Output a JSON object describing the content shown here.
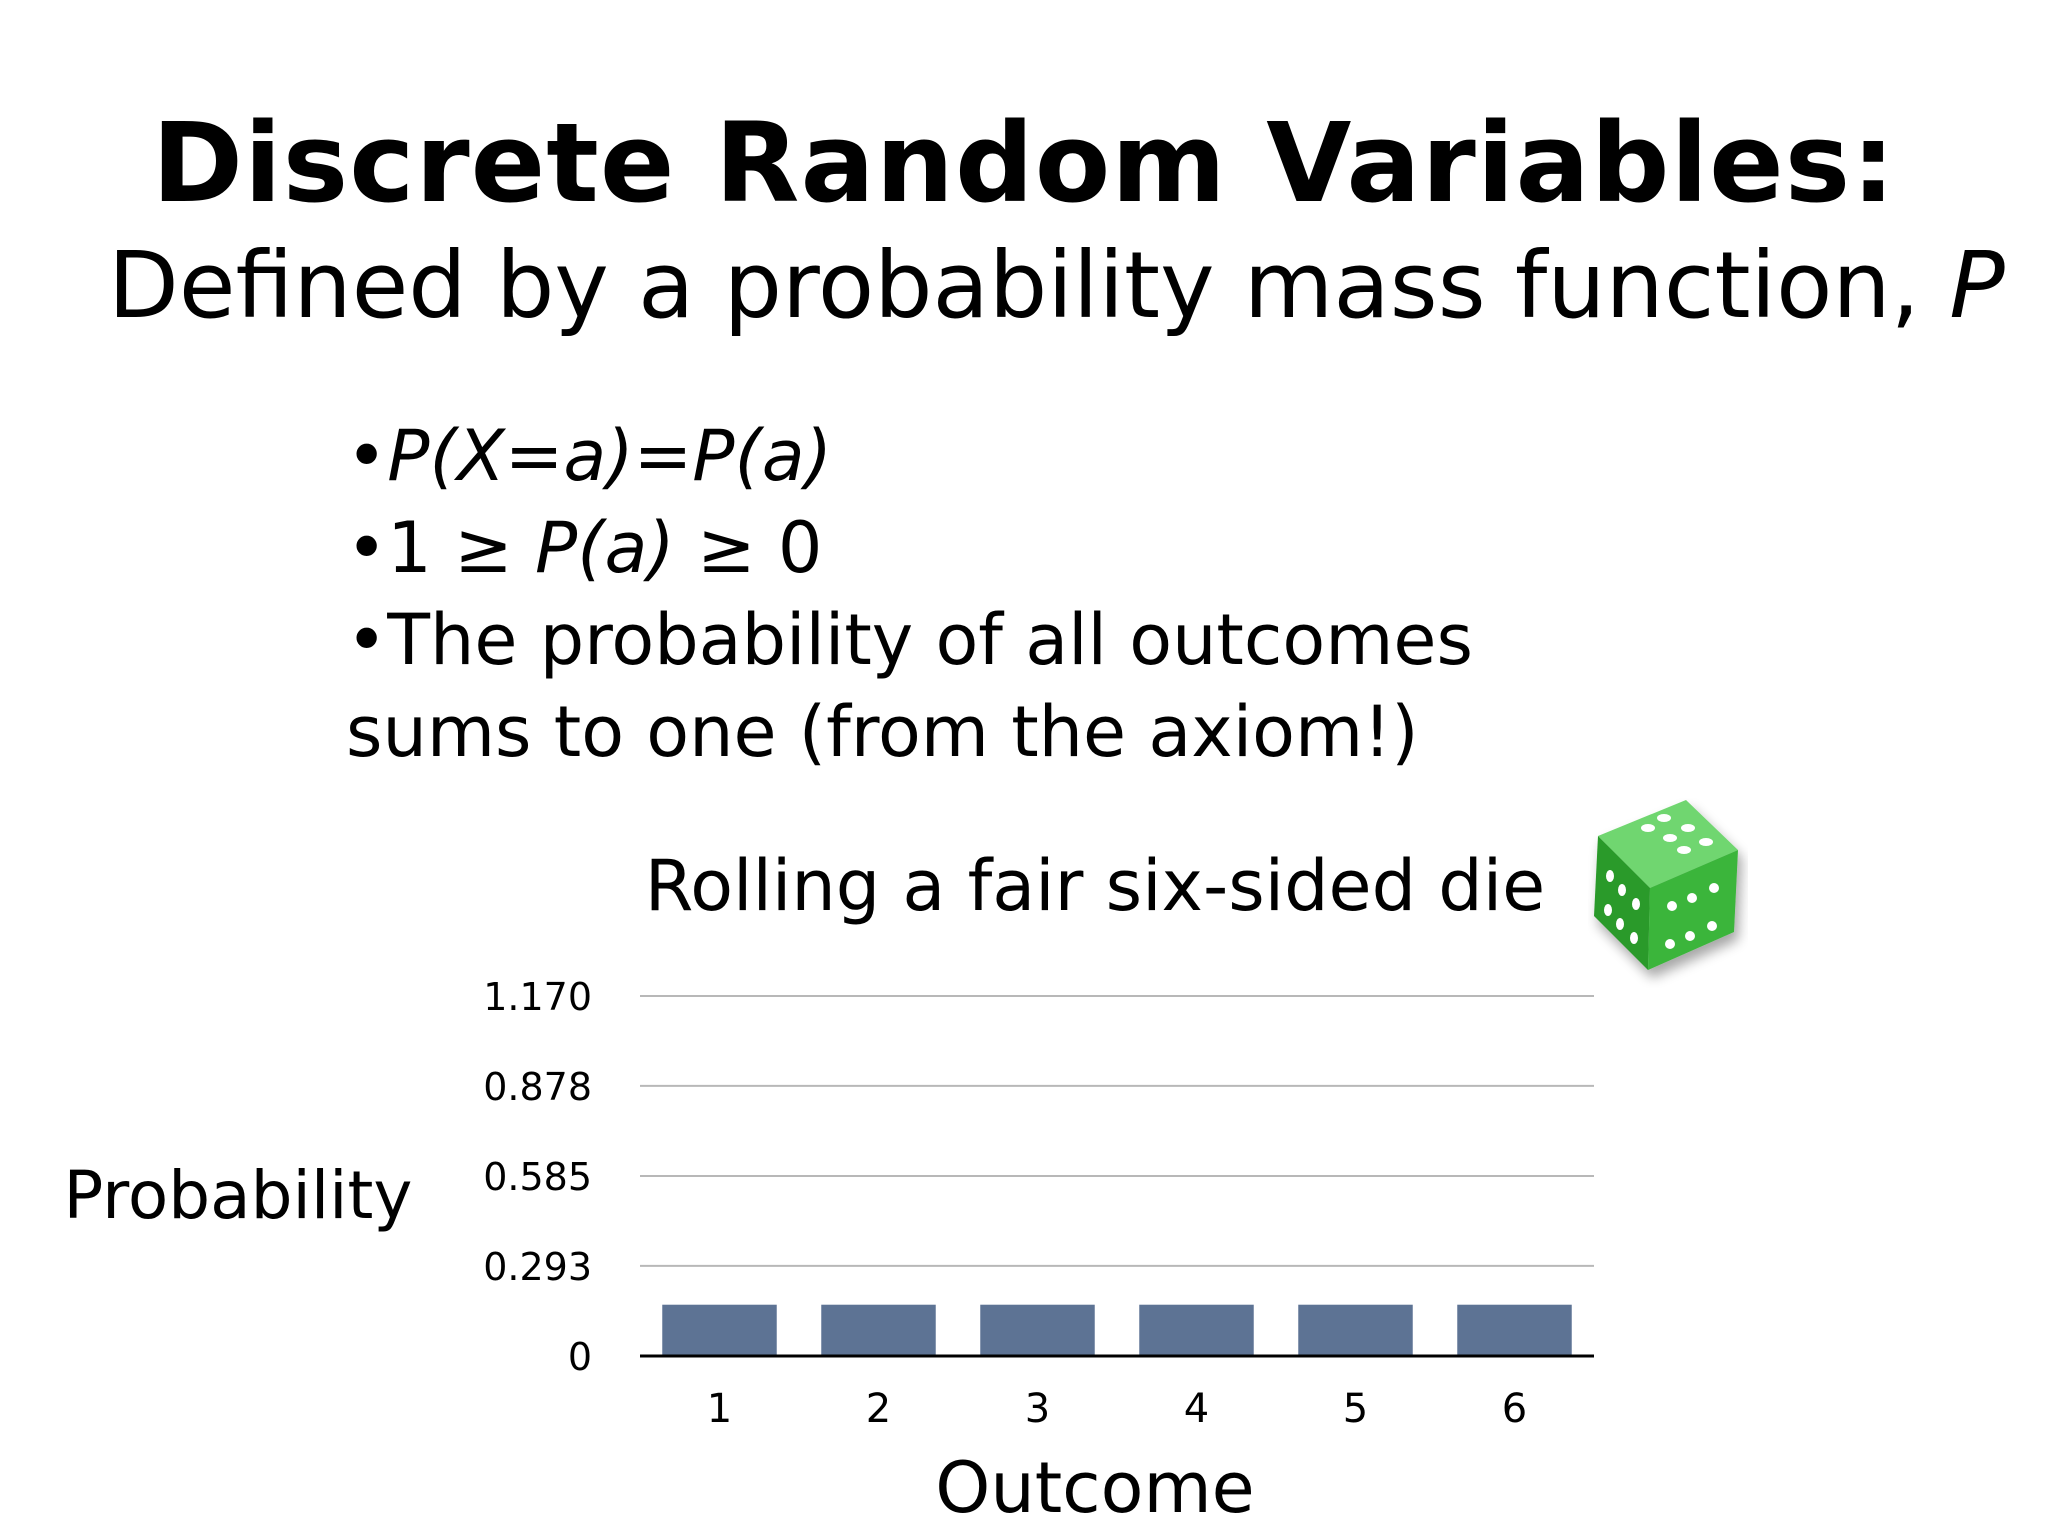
{
  "slide": {
    "title": "Discrete Random Variables:",
    "subtitle_prefix": "Defined by a probability mass function,",
    "subtitle_var": "P",
    "bullets": [
      {
        "bullet": "•",
        "text": "P(X=a)=P(a)",
        "italic": true
      },
      {
        "bullet": "•",
        "text_pre": "1 ≥ ",
        "text_it": "P(a)",
        "text_post": " ≥ 0"
      },
      {
        "bullet": "•",
        "text": "The probability of all outcomes"
      },
      {
        "bullet": "",
        "text": "sums to one (from the axiom!)"
      }
    ]
  },
  "die_image": {
    "icon": "green-die-icon",
    "color": "#2fa82f"
  },
  "chart_data": {
    "type": "bar",
    "title": "Rolling a fair six-sided die",
    "xlabel": "Outcome",
    "ylabel": "Probability",
    "categories": [
      "1",
      "2",
      "3",
      "4",
      "5",
      "6"
    ],
    "values": [
      0.1667,
      0.1667,
      0.1667,
      0.1667,
      0.1667,
      0.1667
    ],
    "yticks": [
      "0",
      "0.293",
      "0.585",
      "0.878",
      "1.170"
    ],
    "ytick_values": [
      0,
      0.293,
      0.585,
      0.878,
      1.17
    ],
    "ylim": [
      0,
      1.17
    ],
    "grid": true,
    "bar_color": "#5d7394",
    "legend": "none"
  }
}
